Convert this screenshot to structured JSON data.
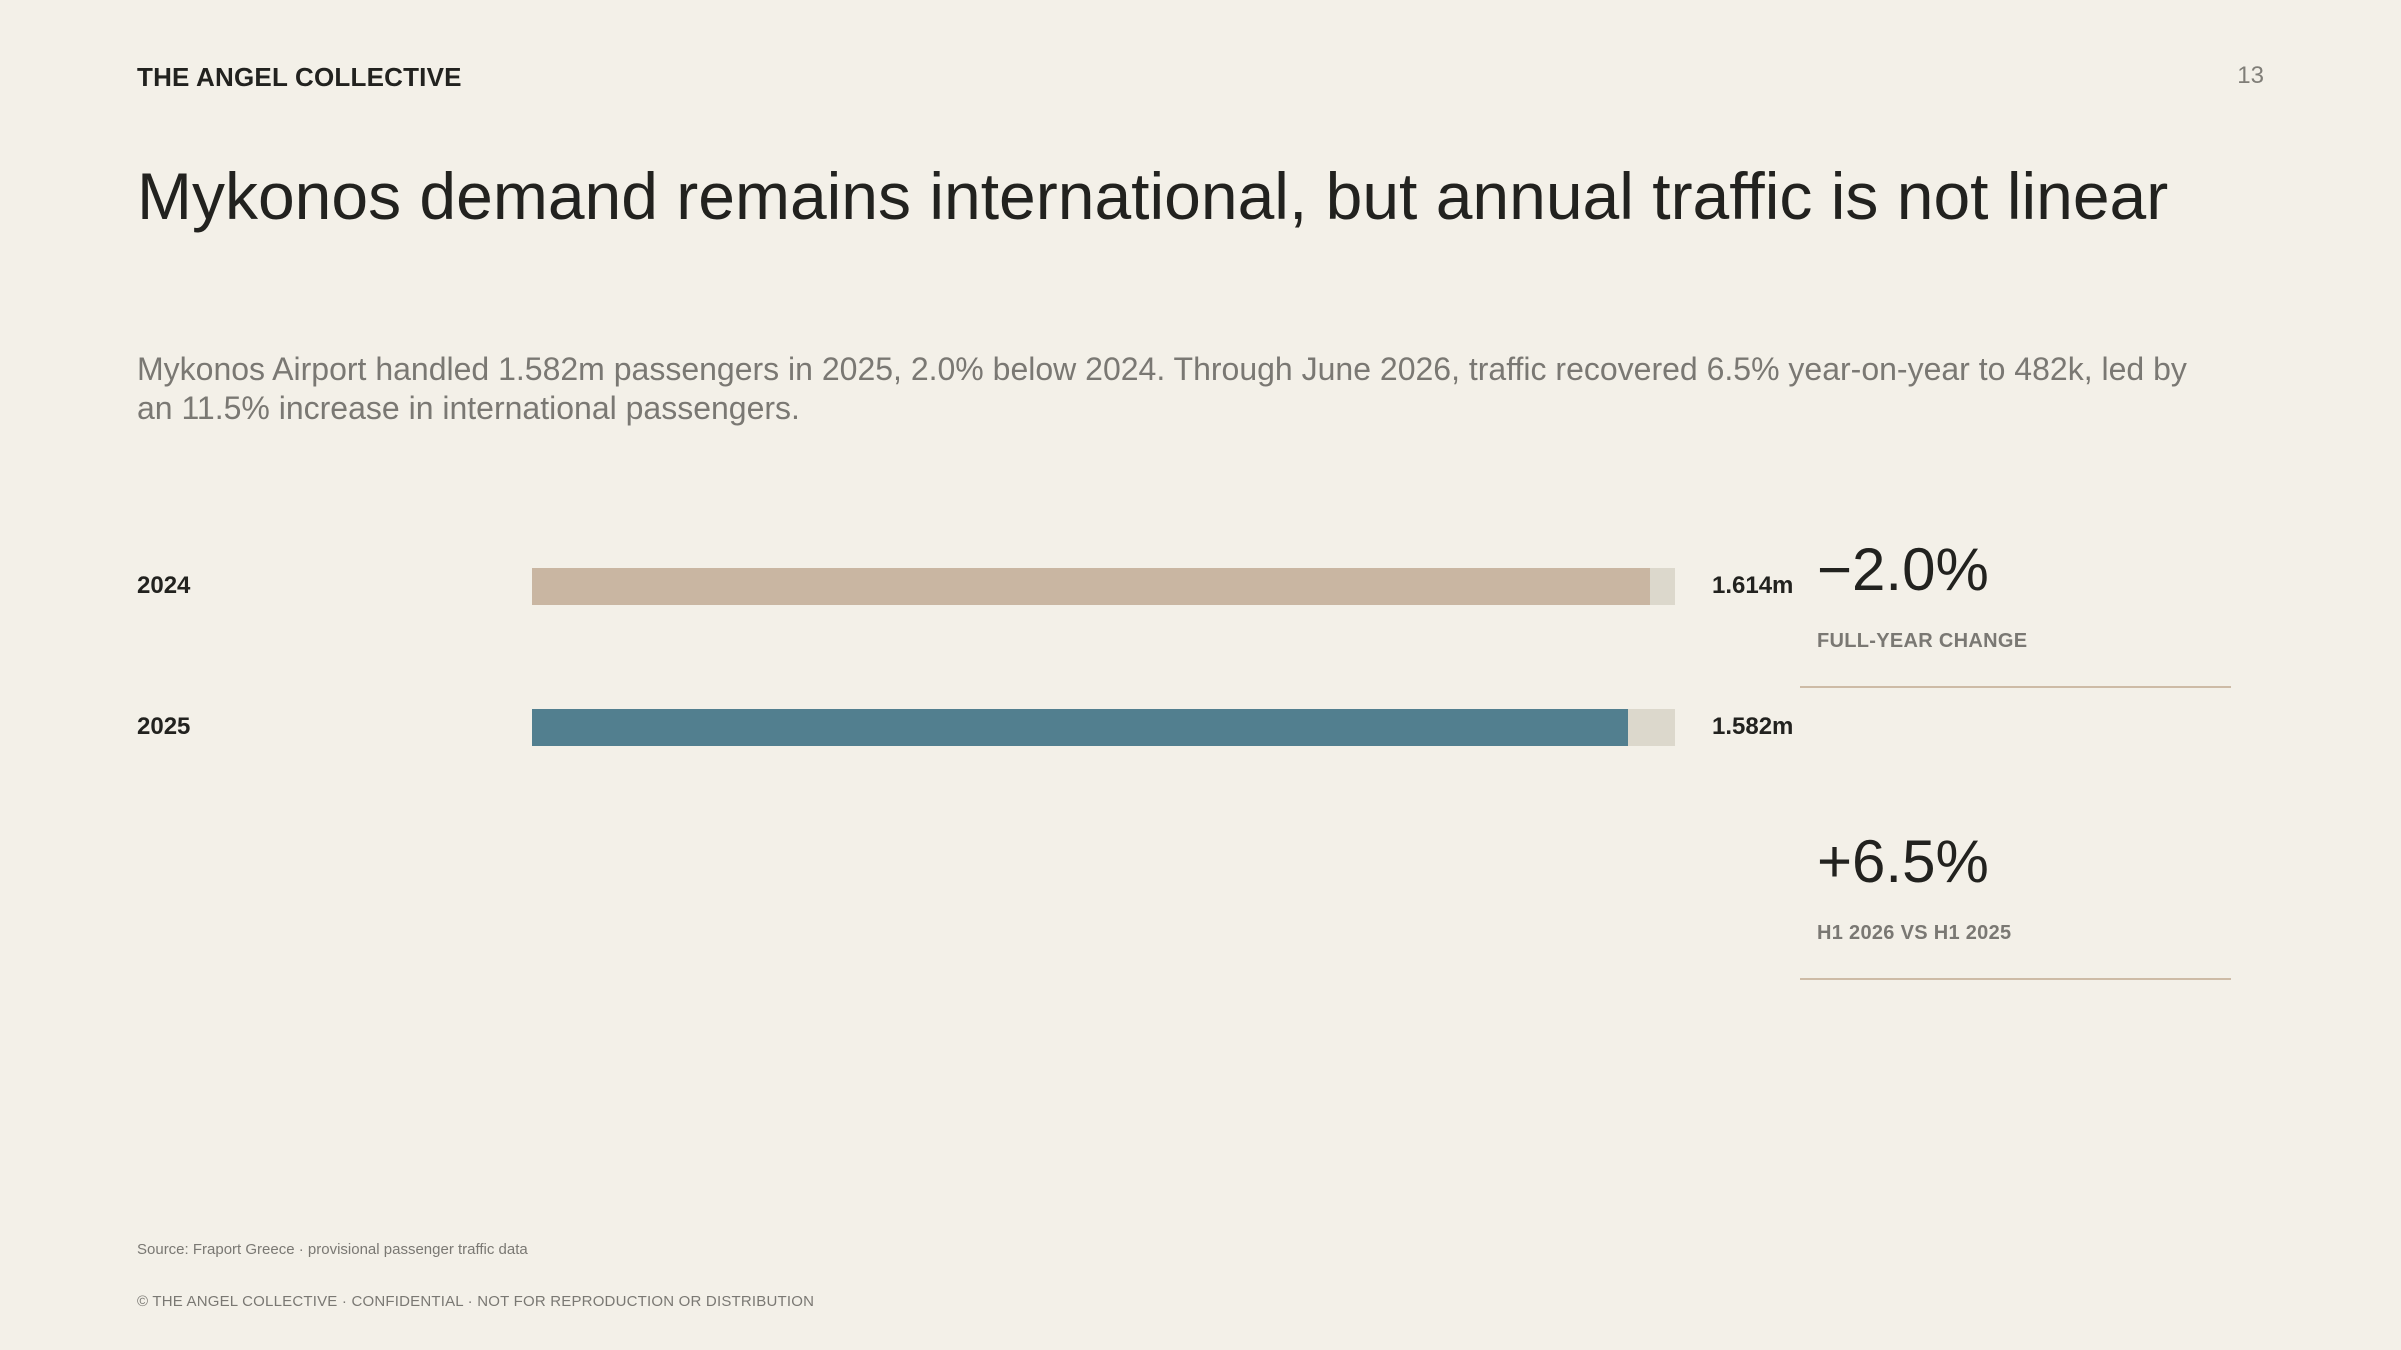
{
  "header": {
    "brand": "THE ANGEL COLLECTIVE",
    "page_number": "13"
  },
  "title": "Mykonos demand remains international, but annual traffic is not linear",
  "subtitle": "Mykonos Airport handled 1.582m passengers in 2025, 2.0% below 2024. Through June 2026, traffic recovered 6.5% year-on-year to 482k, led by an 11.5% increase in international passengers.",
  "chart_data": {
    "type": "bar",
    "orientation": "horizontal",
    "categories": [
      "2024",
      "2025"
    ],
    "values": [
      1.614,
      1.582
    ],
    "value_labels": [
      "1.614m",
      "1.582m"
    ],
    "unit": "m passengers",
    "xlim": [
      0,
      1.65
    ],
    "colors": [
      "#c9b6a2",
      "#527f8f"
    ],
    "track_color": "#dcd8cc",
    "grid": false
  },
  "stats": [
    {
      "value": "−2.0%",
      "caption": "FULL-YEAR CHANGE"
    },
    {
      "value": "+6.5%",
      "caption": "H1 2026 VS H1 2025"
    }
  ],
  "footer": {
    "source": "Source: Fraport Greece · provisional passenger traffic data",
    "copyright": "© THE ANGEL COLLECTIVE · CONFIDENTIAL · NOT FOR REPRODUCTION OR DISTRIBUTION"
  }
}
